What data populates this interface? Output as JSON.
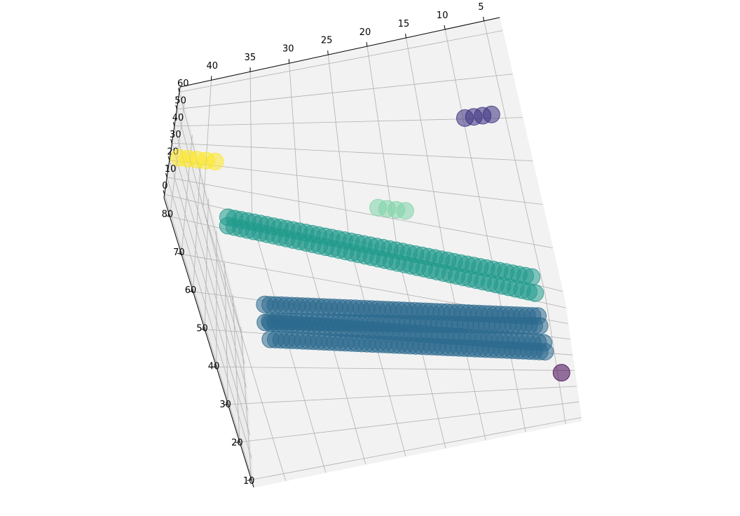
{
  "chart_data": {
    "type": "scatter",
    "projection": "3d",
    "title": "",
    "xlabel": "",
    "ylabel": "",
    "zlabel": "",
    "grid": true,
    "legend": "none",
    "colormap": "viridis",
    "xlim": [
      3,
      44
    ],
    "ylim": [
      8,
      85
    ],
    "zlim": [
      -2,
      63
    ],
    "x_ticks": [
      "5",
      "10",
      "15",
      "20",
      "25",
      "30",
      "35",
      "40"
    ],
    "y_ticks": [
      "10",
      "20",
      "30",
      "40",
      "50",
      "60",
      "70",
      "80"
    ],
    "z_ticks": [
      "0",
      "10",
      "20",
      "30",
      "40",
      "50",
      "60"
    ],
    "clusters": [
      {
        "id": "purple",
        "color": "#440154",
        "x": [
          4.5
        ],
        "y": [
          35
        ],
        "z": [
          0
        ]
      },
      {
        "id": "indigo",
        "color": "#3b2f80",
        "x": [
          6.5,
          7.6,
          8.7,
          9.8
        ],
        "y": [
          70,
          70,
          70,
          70
        ],
        "z": [
          52,
          52,
          52,
          52
        ]
      },
      {
        "id": "blue",
        "color": "#2c6a8e",
        "x_range": [
          6,
          37
        ],
        "y": [
          47,
          52
        ],
        "z": [
          0,
          8
        ],
        "points_per_row": 52
      },
      {
        "id": "teal",
        "color": "#209a8c",
        "x_range": [
          6,
          38
        ],
        "y": [
          80
        ],
        "z": [
          0,
          4
        ],
        "points_per_row": 48
      },
      {
        "id": "mint",
        "color": "#7ed4a8",
        "x": [
          18.6,
          19.6,
          20.6,
          21.6
        ],
        "y": [
          80,
          80,
          80,
          80
        ],
        "z": [
          17,
          17,
          17,
          17
        ]
      },
      {
        "id": "yellow",
        "color": "#fde725",
        "x": [
          39,
          40,
          41,
          42,
          43
        ],
        "y": [
          85,
          85,
          85,
          85,
          85
        ],
        "z": [
          22,
          22,
          22,
          22,
          22
        ]
      }
    ]
  }
}
